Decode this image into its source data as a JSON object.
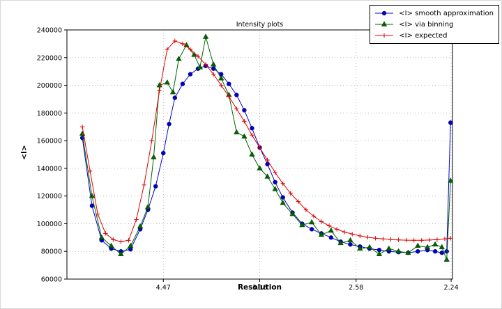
{
  "figure": {
    "background": "#ffffff",
    "frame_color": "#000000",
    "grid_color": "#aaaaaa"
  },
  "chart_data": {
    "type": "line",
    "title": "Intensity plots",
    "xlabel": "Resolution",
    "ylabel": "<I>",
    "grid": true,
    "legend_position": "upper right, outside axes",
    "x_range": [
      0,
      0.2
    ],
    "x_ticks": [
      {
        "pos": 0.05,
        "label": "4.47"
      },
      {
        "pos": 0.1,
        "label": "3.16"
      },
      {
        "pos": 0.15,
        "label": "2.58"
      },
      {
        "pos": 0.1993,
        "label": "2.24"
      }
    ],
    "y_range": [
      60000,
      240000
    ],
    "y_ticks": [
      {
        "pos": 60000,
        "label": "60000"
      },
      {
        "pos": 80000,
        "label": "80000"
      },
      {
        "pos": 100000,
        "label": "100000"
      },
      {
        "pos": 120000,
        "label": "120000"
      },
      {
        "pos": 140000,
        "label": "140000"
      },
      {
        "pos": 160000,
        "label": "160000"
      },
      {
        "pos": 180000,
        "label": "180000"
      },
      {
        "pos": 200000,
        "label": "200000"
      },
      {
        "pos": 220000,
        "label": "220000"
      },
      {
        "pos": 240000,
        "label": "240000"
      }
    ],
    "series": [
      {
        "name": "<I> smooth approximation",
        "color": "#0000cc",
        "marker": "circle",
        "points": [
          [
            0.008,
            162000
          ],
          [
            0.013,
            113000
          ],
          [
            0.018,
            88000
          ],
          [
            0.023,
            82000
          ],
          [
            0.028,
            80000
          ],
          [
            0.033,
            81500
          ],
          [
            0.038,
            96000
          ],
          [
            0.042,
            110000
          ],
          [
            0.046,
            127000
          ],
          [
            0.05,
            151000
          ],
          [
            0.053,
            172000
          ],
          [
            0.056,
            191000
          ],
          [
            0.06,
            201000
          ],
          [
            0.064,
            208000
          ],
          [
            0.068,
            212000
          ],
          [
            0.072,
            214000
          ],
          [
            0.076,
            212000
          ],
          [
            0.08,
            208000
          ],
          [
            0.084,
            201000
          ],
          [
            0.088,
            193000
          ],
          [
            0.092,
            182000
          ],
          [
            0.096,
            169000
          ],
          [
            0.1,
            155000
          ],
          [
            0.104,
            143000
          ],
          [
            0.108,
            130000
          ],
          [
            0.112,
            119000
          ],
          [
            0.117,
            108000
          ],
          [
            0.122,
            100000
          ],
          [
            0.127,
            96000
          ],
          [
            0.132,
            93000
          ],
          [
            0.137,
            90000
          ],
          [
            0.142,
            87000
          ],
          [
            0.147,
            85000
          ],
          [
            0.152,
            83500
          ],
          [
            0.157,
            82000
          ],
          [
            0.162,
            81000
          ],
          [
            0.167,
            80000
          ],
          [
            0.172,
            79500
          ],
          [
            0.177,
            79000
          ],
          [
            0.182,
            80000
          ],
          [
            0.187,
            81000
          ],
          [
            0.191,
            80000
          ],
          [
            0.1945,
            79000
          ],
          [
            0.197,
            80000
          ],
          [
            0.199,
            173000
          ]
        ]
      },
      {
        "name": "<I> via binning",
        "color": "#006400",
        "marker": "triangle",
        "points": [
          [
            0.008,
            165000
          ],
          [
            0.013,
            120000
          ],
          [
            0.018,
            90000
          ],
          [
            0.023,
            84000
          ],
          [
            0.028,
            78000
          ],
          [
            0.033,
            84000
          ],
          [
            0.038,
            98000
          ],
          [
            0.042,
            112000
          ],
          [
            0.045,
            148000
          ],
          [
            0.048,
            200000
          ],
          [
            0.052,
            202000
          ],
          [
            0.055,
            195000
          ],
          [
            0.058,
            219000
          ],
          [
            0.062,
            229000
          ],
          [
            0.066,
            222000
          ],
          [
            0.069,
            213000
          ],
          [
            0.072,
            235000
          ],
          [
            0.076,
            215000
          ],
          [
            0.08,
            205000
          ],
          [
            0.084,
            193000
          ],
          [
            0.088,
            166000
          ],
          [
            0.092,
            163000
          ],
          [
            0.096,
            150000
          ],
          [
            0.1,
            140000
          ],
          [
            0.104,
            134000
          ],
          [
            0.108,
            125000
          ],
          [
            0.112,
            115000
          ],
          [
            0.117,
            107000
          ],
          [
            0.122,
            99000
          ],
          [
            0.127,
            101000
          ],
          [
            0.132,
            92000
          ],
          [
            0.137,
            95000
          ],
          [
            0.142,
            86000
          ],
          [
            0.147,
            88000
          ],
          [
            0.152,
            82000
          ],
          [
            0.157,
            83000
          ],
          [
            0.162,
            78000
          ],
          [
            0.167,
            82000
          ],
          [
            0.172,
            80000
          ],
          [
            0.177,
            79000
          ],
          [
            0.182,
            84000
          ],
          [
            0.187,
            83000
          ],
          [
            0.191,
            85000
          ],
          [
            0.1945,
            83000
          ],
          [
            0.197,
            74000
          ],
          [
            0.199,
            131000
          ]
        ]
      },
      {
        "name": "<I> expected",
        "color": "#dd0000",
        "marker": "plus",
        "points": [
          [
            0.008,
            170000
          ],
          [
            0.012,
            138000
          ],
          [
            0.016,
            107000
          ],
          [
            0.02,
            93000
          ],
          [
            0.024,
            88500
          ],
          [
            0.028,
            87000
          ],
          [
            0.032,
            88000
          ],
          [
            0.036,
            103000
          ],
          [
            0.04,
            128000
          ],
          [
            0.044,
            160000
          ],
          [
            0.048,
            196000
          ],
          [
            0.052,
            226000
          ],
          [
            0.056,
            232000
          ],
          [
            0.06,
            230000
          ],
          [
            0.064,
            226000
          ],
          [
            0.068,
            221000
          ],
          [
            0.072,
            215000
          ],
          [
            0.076,
            208000
          ],
          [
            0.08,
            200000
          ],
          [
            0.084,
            192000
          ],
          [
            0.088,
            183000
          ],
          [
            0.092,
            174000
          ],
          [
            0.096,
            164000
          ],
          [
            0.1,
            155000
          ],
          [
            0.104,
            146000
          ],
          [
            0.108,
            137000
          ],
          [
            0.112,
            129000
          ],
          [
            0.116,
            122000
          ],
          [
            0.12,
            116000
          ],
          [
            0.124,
            110000
          ],
          [
            0.128,
            105500
          ],
          [
            0.132,
            101500
          ],
          [
            0.136,
            98500
          ],
          [
            0.14,
            96000
          ],
          [
            0.144,
            94000
          ],
          [
            0.148,
            92500
          ],
          [
            0.152,
            91200
          ],
          [
            0.156,
            90200
          ],
          [
            0.16,
            89500
          ],
          [
            0.164,
            89000
          ],
          [
            0.168,
            88600
          ],
          [
            0.172,
            88300
          ],
          [
            0.176,
            88100
          ],
          [
            0.18,
            88000
          ],
          [
            0.184,
            88000
          ],
          [
            0.188,
            88200
          ],
          [
            0.192,
            88500
          ],
          [
            0.196,
            89000
          ],
          [
            0.199,
            89500
          ]
        ]
      }
    ]
  }
}
